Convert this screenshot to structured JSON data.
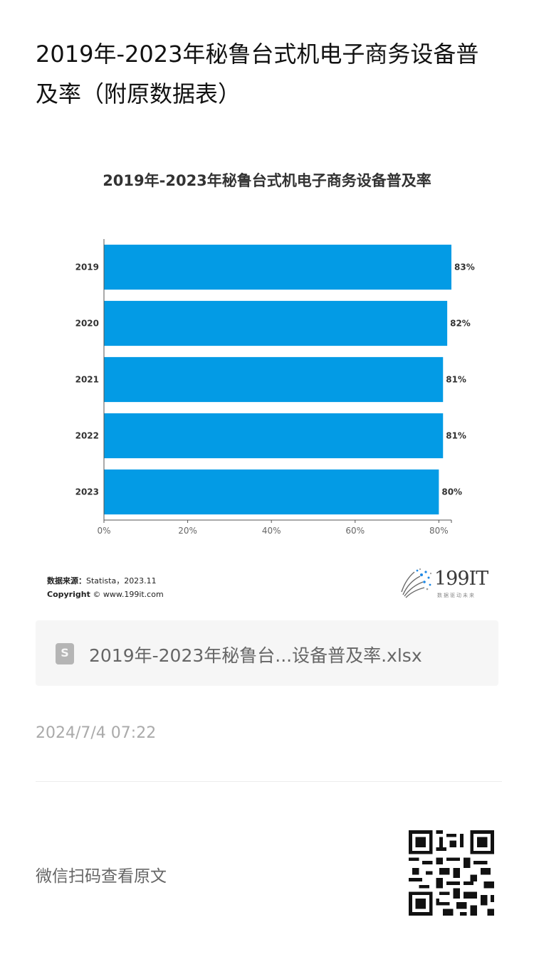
{
  "article": {
    "title": "2019年-2023年秘鲁台式机电子商务设备普及率（附原数据表）"
  },
  "chart_data": {
    "type": "bar",
    "orientation": "horizontal",
    "title": "2019年-2023年秘鲁台式机电子商务设备普及率",
    "categories": [
      "2019",
      "2020",
      "2021",
      "2022",
      "2023"
    ],
    "values": [
      83,
      82,
      81,
      81,
      80
    ],
    "value_labels": [
      "83%",
      "82%",
      "81%",
      "81%",
      "80%"
    ],
    "xlim": [
      0,
      83
    ],
    "x_ticks": [
      0,
      20,
      40,
      60,
      80
    ],
    "x_tick_labels": [
      "0%",
      "20%",
      "40%",
      "60%",
      "80%"
    ],
    "bar_color": "#039be5",
    "grid": false,
    "legend": "none"
  },
  "source": {
    "label": "数据来源：",
    "text": "Statista，2023.11",
    "copyright_label": "Copyright",
    "copyright_text": "© www.199it.com"
  },
  "logo": {
    "text": "199IT",
    "slogan": "数据驱动未来",
    "icon": "dandelion-logo-icon"
  },
  "file": {
    "icon": "spreadsheet-file-icon",
    "glyph": "S",
    "name": "2019年-2023年秘鲁台...设备普及率.xlsx"
  },
  "date": "2024/7/4 07:22",
  "qr": {
    "label": "微信扫码查看原文",
    "icon": "qr-code-icon"
  }
}
